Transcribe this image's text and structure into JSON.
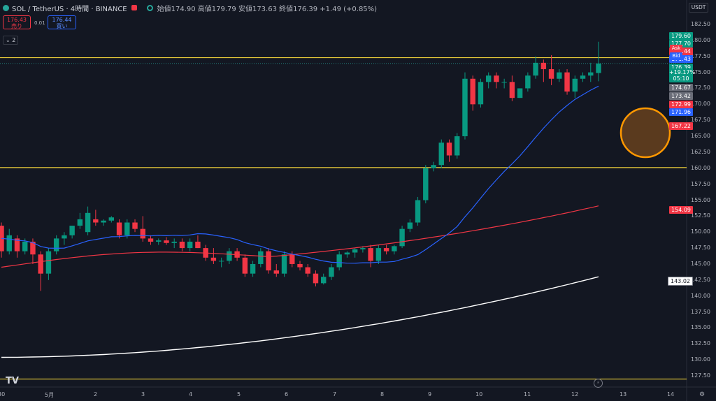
{
  "header": {
    "symbol": "SOL / TetherUS · 4時間 · BINANCE",
    "ohlc": "始値174.90 高値179.79 安値173.63 終値176.39 +1.49 (+0.85%)",
    "sell_price": "176.43",
    "sell_label": "売り",
    "spread": "0.01",
    "buy_price": "176.44",
    "buy_label": "買い",
    "indicator_toggle": "2"
  },
  "currency_button": "USDT",
  "y_axis_ticks": [
    "182.50",
    "180.00",
    "177.50",
    "175.00",
    "172.50",
    "170.00",
    "167.50",
    "165.00",
    "162.50",
    "160.00",
    "157.50",
    "155.00",
    "152.50",
    "150.00",
    "147.50",
    "145.00",
    "142.50",
    "140.00",
    "137.50",
    "135.00",
    "132.50",
    "130.00",
    "127.50"
  ],
  "x_axis_ticks": [
    "30",
    "5月",
    "2",
    "3",
    "4",
    "5",
    "6",
    "7",
    "8",
    "9",
    "10",
    "11",
    "12",
    "13",
    "14"
  ],
  "price_tags": [
    {
      "text": "179.60",
      "color": "#089981"
    },
    {
      "text": "177.70",
      "color": "#089981"
    },
    {
      "text": "176.44",
      "color": "#f23645"
    },
    {
      "text": "176.43",
      "color": "#2962ff"
    },
    {
      "text": "176.39",
      "color": "#089981"
    },
    {
      "text": "174.67",
      "color": "#6a6d78"
    },
    {
      "text": "173.42",
      "color": "#6a6d78"
    },
    {
      "text": "172.99",
      "color": "#f23645"
    },
    {
      "text": "171.96",
      "color": "#2962ff"
    },
    {
      "text": "167.22",
      "color": "#f23645"
    },
    {
      "text": "154.09",
      "color": "#f23645"
    },
    {
      "text": "143.02",
      "color": "#ffffff"
    }
  ],
  "ask_label": "Ask",
  "bid_label": "Bid",
  "last_change": "+19.17%",
  "countdown": "05:10",
  "chart_data": {
    "type": "candlestick",
    "horizontal_lines": [
      177.3,
      160.1,
      127.0
    ],
    "last_price": 176.39,
    "candles_ohlc": [
      [
        151.0,
        151.5,
        146.0,
        147.0
      ],
      [
        147.0,
        150.5,
        146.5,
        149.5
      ],
      [
        149.0,
        149.5,
        146.0,
        147.0
      ],
      [
        147.0,
        149.0,
        146.5,
        148.5
      ],
      [
        148.5,
        149.0,
        145.0,
        146.5
      ],
      [
        146.5,
        147.0,
        140.8,
        143.5
      ],
      [
        143.5,
        147.5,
        142.5,
        147.0
      ],
      [
        147.0,
        149.5,
        146.5,
        149.0
      ],
      [
        149.0,
        150.0,
        148.0,
        149.5
      ],
      [
        149.5,
        151.0,
        149.0,
        151.0
      ],
      [
        151.0,
        153.0,
        150.5,
        152.0
      ],
      [
        150.0,
        154.0,
        149.5,
        153.0
      ],
      [
        152.0,
        153.5,
        151.0,
        151.5
      ],
      [
        151.5,
        152.0,
        151.0,
        151.8
      ],
      [
        151.8,
        152.5,
        151.5,
        152.3
      ],
      [
        151.5,
        152.0,
        149.0,
        149.5
      ],
      [
        149.5,
        152.0,
        149.0,
        151.5
      ],
      [
        151.5,
        152.0,
        150.0,
        150.5
      ],
      [
        150.5,
        152.5,
        148.5,
        149.0
      ],
      [
        149.0,
        149.5,
        148.0,
        148.5
      ],
      [
        148.5,
        149.0,
        148.0,
        148.7
      ],
      [
        148.7,
        149.2,
        148.0,
        148.3
      ],
      [
        148.3,
        149.0,
        147.5,
        148.5
      ],
      [
        148.5,
        149.0,
        147.0,
        147.5
      ],
      [
        147.5,
        149.0,
        147.0,
        148.5
      ],
      [
        148.5,
        149.5,
        147.5,
        147.5
      ],
      [
        147.5,
        148.0,
        145.5,
        146.0
      ],
      [
        146.0,
        147.5,
        145.0,
        145.5
      ],
      [
        145.5,
        146.0,
        144.5,
        145.5
      ],
      [
        145.5,
        147.5,
        145.0,
        147.0
      ],
      [
        147.0,
        147.5,
        145.5,
        146.0
      ],
      [
        146.0,
        146.5,
        143.0,
        143.5
      ],
      [
        143.5,
        145.5,
        143.0,
        145.0
      ],
      [
        145.0,
        147.5,
        144.5,
        147.0
      ],
      [
        147.0,
        147.5,
        143.5,
        144.0
      ],
      [
        144.0,
        145.0,
        143.0,
        143.5
      ],
      [
        143.5,
        147.0,
        143.0,
        146.5
      ],
      [
        146.5,
        147.0,
        144.5,
        145.0
      ],
      [
        145.0,
        145.5,
        144.0,
        144.5
      ],
      [
        144.5,
        145.0,
        143.0,
        143.5
      ],
      [
        143.5,
        144.0,
        141.5,
        142.0
      ],
      [
        142.0,
        143.5,
        141.8,
        143.0
      ],
      [
        143.0,
        145.0,
        142.5,
        144.5
      ],
      [
        144.5,
        147.0,
        144.0,
        146.5
      ],
      [
        146.5,
        147.0,
        146.0,
        146.8
      ],
      [
        146.8,
        147.5,
        146.0,
        147.3
      ],
      [
        147.3,
        147.8,
        146.8,
        147.5
      ],
      [
        147.5,
        148.0,
        144.5,
        145.5
      ],
      [
        145.5,
        148.0,
        145.0,
        147.5
      ],
      [
        147.5,
        148.0,
        146.5,
        147.0
      ],
      [
        147.0,
        148.0,
        146.5,
        147.8
      ],
      [
        147.8,
        151.0,
        147.5,
        150.5
      ],
      [
        150.5,
        152.0,
        150.0,
        151.5
      ],
      [
        151.5,
        155.5,
        151.0,
        155.0
      ],
      [
        155.0,
        160.5,
        154.5,
        160.0
      ],
      [
        160.0,
        161.0,
        159.5,
        160.5
      ],
      [
        160.5,
        164.5,
        160.0,
        164.0
      ],
      [
        164.0,
        164.5,
        161.0,
        162.0
      ],
      [
        162.0,
        165.5,
        161.5,
        165.0
      ],
      [
        165.0,
        175.0,
        164.5,
        174.0
      ],
      [
        174.0,
        174.5,
        169.0,
        170.0
      ],
      [
        170.0,
        174.0,
        169.5,
        173.5
      ],
      [
        173.5,
        175.0,
        172.5,
        174.5
      ],
      [
        174.5,
        175.0,
        172.5,
        173.5
      ],
      [
        173.5,
        174.0,
        172.5,
        173.5
      ],
      [
        173.5,
        174.5,
        170.5,
        171.0
      ],
      [
        171.0,
        172.5,
        171.0,
        172.5
      ],
      [
        172.5,
        175.0,
        172.0,
        174.5
      ],
      [
        174.5,
        177.5,
        174.0,
        176.5
      ],
      [
        176.5,
        177.0,
        173.5,
        175.5
      ],
      [
        175.5,
        177.7,
        173.0,
        174.0
      ],
      [
        174.0,
        175.5,
        173.5,
        175.0
      ],
      [
        175.0,
        175.5,
        171.5,
        172.0
      ],
      [
        172.0,
        174.5,
        171.0,
        174.0
      ],
      [
        174.0,
        175.0,
        173.5,
        174.5
      ],
      [
        174.5,
        176.5,
        173.5,
        175.0
      ],
      [
        174.9,
        179.8,
        173.6,
        176.39
      ]
    ],
    "moving_averages": [
      {
        "color": "#2962ff",
        "start": 149.0,
        "end": 173.4
      },
      {
        "color": "#f23645",
        "start": 144.5,
        "end": 154.1
      },
      {
        "color": "#ffffff",
        "start": 130.4,
        "end": 143.0
      }
    ],
    "marker": {
      "shape": "circle",
      "color": "#ff9800"
    }
  }
}
